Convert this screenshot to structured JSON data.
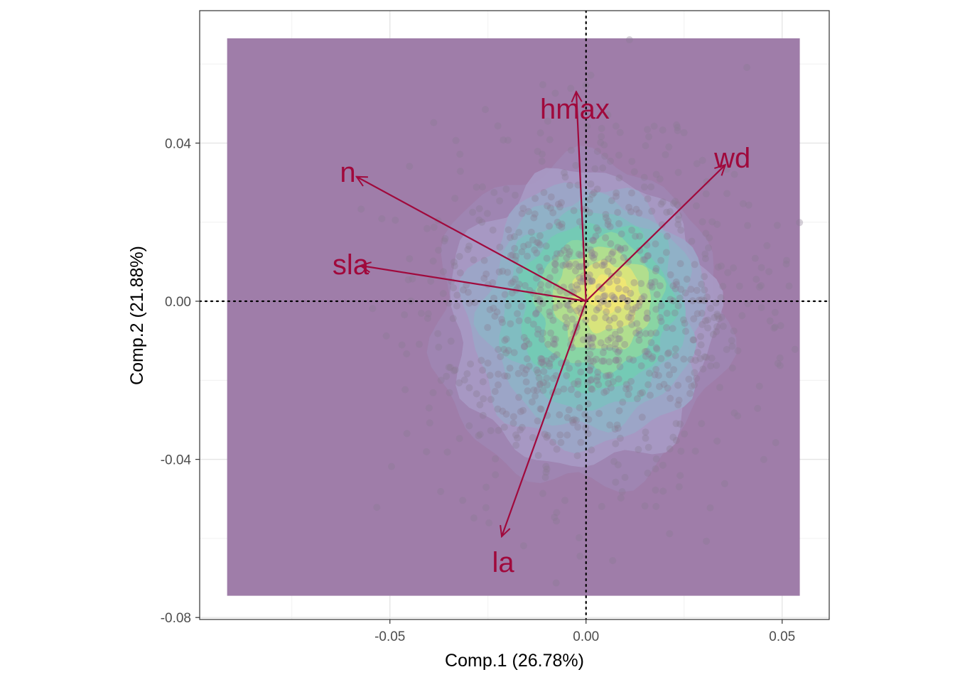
{
  "chart_data": {
    "type": "scatter",
    "title": "",
    "xlabel": "Comp.1 (26.78%)",
    "ylabel": "Comp.2 (21.88%)",
    "xlim": [
      -0.0985,
      0.062
    ],
    "ylim": [
      -0.0805,
      0.0735
    ],
    "x_ticks": [
      -0.05,
      0.0,
      0.05
    ],
    "x_tick_labels": [
      "-0.05",
      "0.00",
      "0.05"
    ],
    "y_ticks": [
      0.04,
      0.0,
      -0.04,
      -0.08
    ],
    "y_tick_labels": [
      "0.04",
      "0.00",
      "-0.04",
      "-0.08"
    ],
    "grid": true,
    "reference_lines": {
      "x": 0,
      "y": 0,
      "style": "dotted"
    },
    "density_extent": {
      "x": [
        -0.0915,
        0.0545
      ],
      "y": [
        -0.0745,
        0.0665
      ]
    },
    "colors": {
      "arrow": "#a0093c",
      "density_background": "#9f7da9",
      "points": "#8a7a92",
      "density_levels": [
        "#9f86b2",
        "#a79ac4",
        "#9ba6c8",
        "#8fb2c6",
        "#7ebfc0",
        "#72cbb4",
        "#8cd6a2",
        "#b6df8c",
        "#dde47a",
        "#f2e672"
      ]
    },
    "loadings": [
      {
        "label": "hmax",
        "x": -0.0025,
        "y": 0.053
      },
      {
        "label": "wd",
        "x": 0.0355,
        "y": 0.0345
      },
      {
        "label": "n",
        "x": -0.0585,
        "y": 0.0315
      },
      {
        "label": "sla",
        "x": -0.0575,
        "y": 0.009
      },
      {
        "label": "la",
        "x": -0.0215,
        "y": -0.0595
      }
    ]
  }
}
